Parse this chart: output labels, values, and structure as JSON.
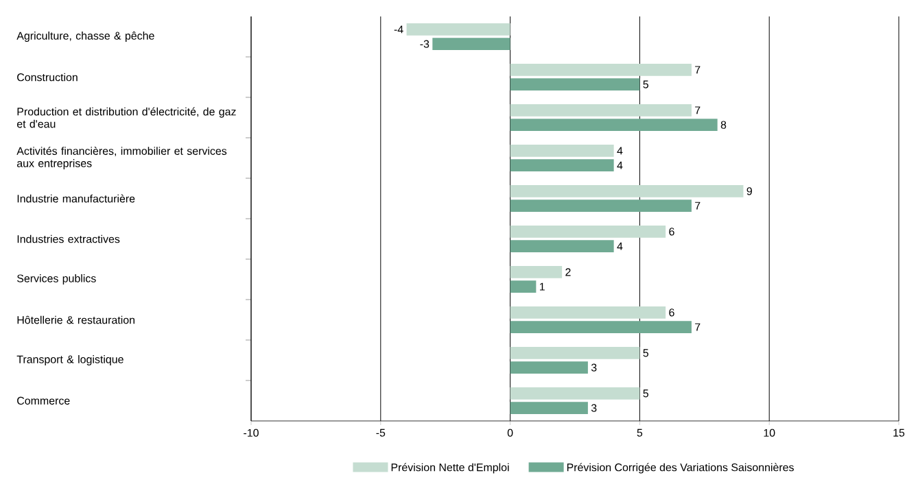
{
  "chart_data": {
    "type": "bar",
    "orientation": "horizontal",
    "categories": [
      "Agriculture, chasse & pêche",
      "Construction",
      "Production et distribution d'électricité, de gaz et d'eau",
      "Activités financières, immobilier et services aux entreprises",
      "Industrie manufacturière",
      "Industries extractives",
      "Services publics",
      "Hôtellerie & restauration",
      "Transport & logistique",
      "Commerce"
    ],
    "series": [
      {
        "name": "Prévision Nette d'Emploi",
        "color": "#c5ddd1",
        "values": [
          -4,
          7,
          7,
          4,
          9,
          6,
          2,
          6,
          5,
          5
        ]
      },
      {
        "name": "Prévision Corrigée des Variations Saisonnières",
        "color": "#70aa93",
        "values": [
          -3,
          5,
          8,
          4,
          7,
          4,
          1,
          7,
          3,
          3
        ]
      }
    ],
    "xlim": [
      -10,
      15
    ],
    "xticks": [
      -10,
      -5,
      0,
      5,
      10,
      15
    ],
    "grid": "x",
    "legend": "bottom",
    "data_labels": true
  }
}
